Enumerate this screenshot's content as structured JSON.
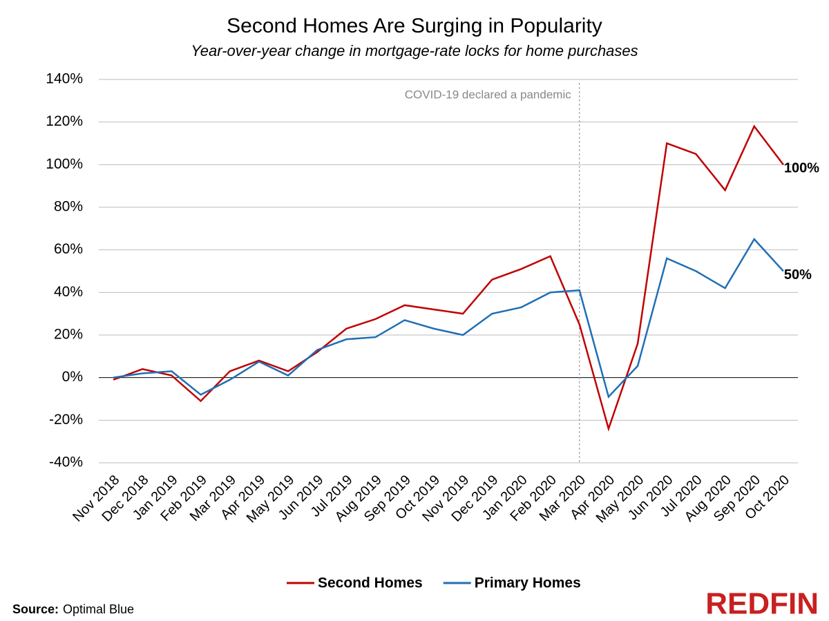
{
  "chart_data": {
    "type": "line",
    "title": "Second Homes Are Surging in Popularity",
    "subtitle": "Year-over-year change in mortgage-rate locks for home purchases",
    "categories": [
      "Nov 2018",
      "Dec 2018",
      "Jan 2019",
      "Feb 2019",
      "Mar 2019",
      "Apr 2019",
      "May 2019",
      "Jun 2019",
      "Jul 2019",
      "Aug 2019",
      "Sep 2019",
      "Oct 2019",
      "Nov 2019",
      "Dec 2019",
      "Jan 2020",
      "Feb 2020",
      "Mar 2020",
      "Apr 2020",
      "May 2020",
      "Jun 2020",
      "Jul 2020",
      "Aug 2020",
      "Sep 2020",
      "Oct 2020"
    ],
    "series": [
      {
        "name": "Second Homes",
        "color": "#c00000",
        "values": [
          -1,
          4,
          1,
          -11,
          3,
          8,
          3,
          12,
          23,
          27.5,
          34,
          32,
          30,
          46,
          51,
          57,
          25,
          -24,
          16,
          110,
          105,
          88,
          118,
          100
        ],
        "value_labels": [
          null,
          null,
          null,
          null,
          null,
          null,
          null,
          null,
          null,
          null,
          null,
          null,
          null,
          null,
          null,
          null,
          null,
          null,
          null,
          null,
          null,
          null,
          null,
          "100%"
        ]
      },
      {
        "name": "Primary Homes",
        "color": "#1f6fb5",
        "values": [
          0,
          2,
          3,
          -8,
          -1,
          7.5,
          1,
          13,
          18,
          19,
          27,
          23,
          20,
          30,
          33,
          40,
          41,
          -9,
          5.5,
          56,
          50,
          42,
          65,
          50
        ],
        "value_labels": [
          null,
          null,
          null,
          null,
          null,
          null,
          null,
          null,
          null,
          null,
          null,
          null,
          null,
          null,
          null,
          null,
          null,
          null,
          null,
          null,
          null,
          null,
          null,
          "50%"
        ]
      }
    ],
    "ylim": [
      -40,
      140
    ],
    "yticks": [
      {
        "value": -40,
        "label": "-40%"
      },
      {
        "value": -20,
        "label": "-20%"
      },
      {
        "value": 0,
        "label": "0%"
      },
      {
        "value": 20,
        "label": "20%"
      },
      {
        "value": 40,
        "label": "40%"
      },
      {
        "value": 60,
        "label": "60%"
      },
      {
        "value": 80,
        "label": "80%"
      },
      {
        "value": 100,
        "label": "100%"
      },
      {
        "value": 120,
        "label": "120%"
      },
      {
        "value": 140,
        "label": "140%"
      }
    ],
    "grid": true,
    "annotation": {
      "text": "COVID-19 declared a pandemic",
      "x": "Mar 2020"
    },
    "legend": "bottom",
    "source_label": "Source:",
    "source": "Optimal Blue",
    "logo": "REDFIN"
  }
}
